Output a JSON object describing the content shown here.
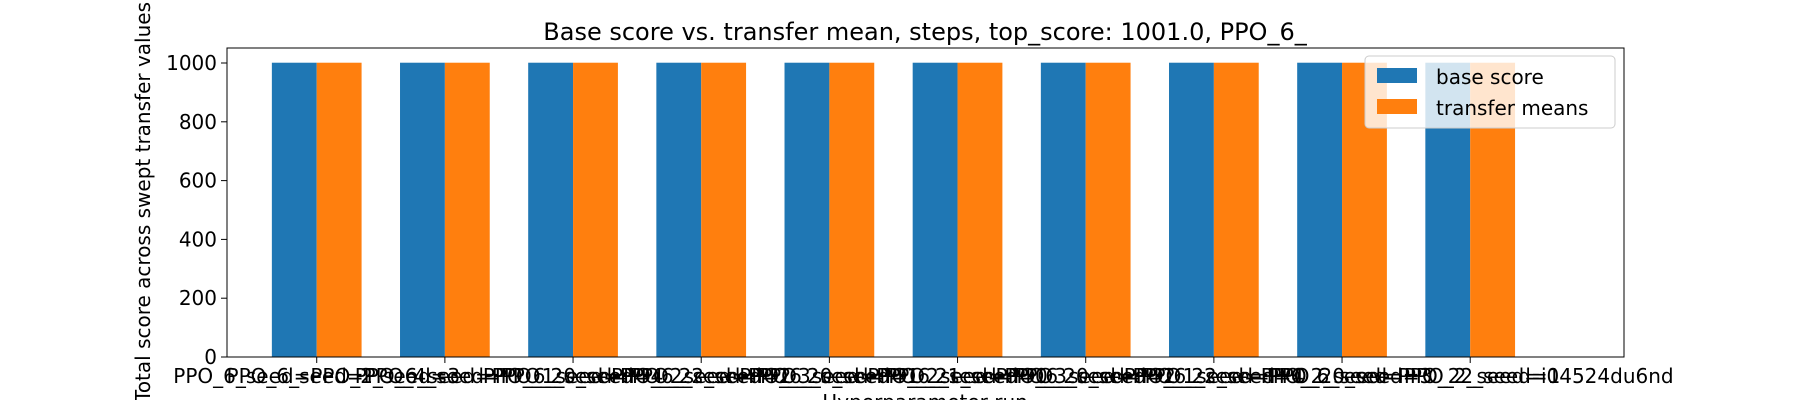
{
  "chart_data": {
    "type": "bar",
    "title": "Base score vs. transfer mean, steps, top_score: 1001.0, PPO_6_",
    "xlabel": "Hyperparameter run",
    "ylabel": "Total score across swept transfer values",
    "categories": [
      "PPO_6_seed=PPO_2_seed=3",
      "PPO_6_seed=PPO_4_seed=PPO_20_seed=4",
      "PPO_6_seed=PPO_1_seed=PPO_22_seed=2",
      "PPO_6_seed=PPO_2_seed=PPO_20_seed=1",
      "PPO_6_seed=PPO_3_seed=PPO_21_seed=0",
      "PPO_6_seed=PPO_2_seed=PPO_20_seed=2",
      "PPO_6_seed=PPO_3_seed=PPO_22_seed=4",
      "PPO_6_seed=PPO_1_seed=PPO_20_seed=3",
      "PPO_6_seed=PPO_2_seed=PPO_22_seed=1",
      "PPO_6_seed=PPO_2_seed=i04524du6nd"
    ],
    "series": [
      {
        "name": "base score",
        "color": "#1f77b4",
        "values": [
          1001,
          1001,
          1001,
          1001,
          1001,
          1001,
          1001,
          1001,
          1001,
          1001
        ]
      },
      {
        "name": "transfer means",
        "color": "#ff7f0e",
        "values": [
          1001,
          1001,
          1001,
          1001,
          1001,
          1001,
          1001,
          1001,
          1001,
          1001
        ]
      }
    ],
    "yticks": [
      0,
      200,
      400,
      600,
      800,
      1000
    ],
    "ylim": [
      0,
      1051.05
    ],
    "xlim": [
      -0.7,
      10.2
    ],
    "grid": false,
    "legend_position": "top-right"
  }
}
